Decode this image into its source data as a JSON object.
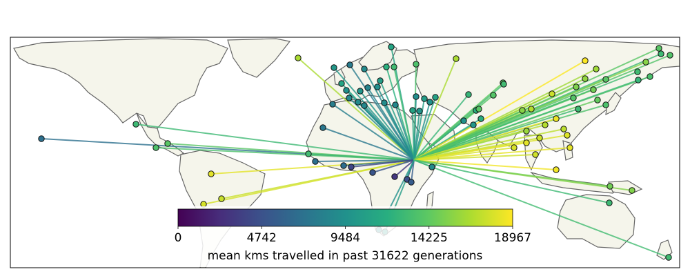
{
  "colorbar": {
    "ticks": [
      "0",
      "4742",
      "9484",
      "14225",
      "18967"
    ],
    "label": "mean kms travelled in past 31622 generations",
    "colormap": "viridis",
    "min": 0,
    "max": 18967
  },
  "map": {
    "land_color": "#f5f5eb",
    "coast_color": "#666666",
    "origin_description": "all migration lines converge on a point in East Africa (Lake Victoria region)"
  },
  "migration_points": [
    {
      "pos": [
        60,
        201
      ],
      "km": 7000
    },
    {
      "pos": [
        197,
        180
      ],
      "km": 12800
    },
    {
      "pos": [
        226,
        214
      ],
      "km": 13500
    },
    {
      "pos": [
        243,
        208
      ],
      "km": 14000
    },
    {
      "pos": [
        306,
        252
      ],
      "km": 18200
    },
    {
      "pos": [
        321,
        288
      ],
      "km": 17400
    },
    {
      "pos": [
        295,
        296
      ],
      "km": 17800
    },
    {
      "pos": [
        432,
        84
      ],
      "km": 16500
    },
    {
      "pos": [
        484,
        98
      ],
      "km": 10000
    },
    {
      "pos": [
        507,
        94
      ],
      "km": 7800
    },
    {
      "pos": [
        528,
        100
      ],
      "km": 9000
    },
    {
      "pos": [
        567,
        68
      ],
      "km": 11000
    },
    {
      "pos": [
        560,
        97
      ],
      "km": 12000
    },
    {
      "pos": [
        571,
        97
      ],
      "km": 13000
    },
    {
      "pos": [
        603,
        93
      ],
      "km": 13500
    },
    {
      "pos": [
        661,
        85
      ],
      "km": 16500
    },
    {
      "pos": [
        495,
        121
      ],
      "km": 11000
    },
    {
      "pos": [
        502,
        131
      ],
      "km": 9500
    },
    {
      "pos": [
        522,
        132
      ],
      "km": 9800
    },
    {
      "pos": [
        533,
        127
      ],
      "km": 8500
    },
    {
      "pos": [
        547,
        126
      ],
      "km": 9300
    },
    {
      "pos": [
        551,
        117
      ],
      "km": 10500
    },
    {
      "pos": [
        482,
        151
      ],
      "km": 8000
    },
    {
      "pos": [
        519,
        148
      ],
      "km": 9000
    },
    {
      "pos": [
        528,
        153
      ],
      "km": 8700
    },
    {
      "pos": [
        506,
        142
      ],
      "km": 8900
    },
    {
      "pos": [
        557,
        149
      ],
      "km": 9100
    },
    {
      "pos": [
        573,
        152
      ],
      "km": 8800
    },
    {
      "pos": [
        603,
        140
      ],
      "km": 9200
    },
    {
      "pos": [
        615,
        143
      ],
      "km": 10500
    },
    {
      "pos": [
        623,
        148
      ],
      "km": 9400
    },
    {
      "pos": [
        631,
        141
      ],
      "km": 10800
    },
    {
      "pos": [
        608,
        161
      ],
      "km": 9800
    },
    {
      "pos": [
        598,
        160
      ],
      "km": 11000
    },
    {
      "pos": [
        468,
        185
      ],
      "km": 7600
    },
    {
      "pos": [
        447,
        223
      ],
      "km": 13000
    },
    {
      "pos": [
        457,
        234
      ],
      "km": 7000
    },
    {
      "pos": [
        498,
        240
      ],
      "km": 6800
    },
    {
      "pos": [
        509,
        242
      ],
      "km": 4000
    },
    {
      "pos": [
        540,
        250
      ],
      "km": 5000
    },
    {
      "pos": [
        572,
        256
      ],
      "km": 3000
    },
    {
      "pos": [
        590,
        260
      ],
      "km": 4500
    },
    {
      "pos": [
        596,
        264
      ],
      "km": 5500
    },
    {
      "pos": [
        626,
        242
      ],
      "km": 9000
    },
    {
      "pos": [
        549,
        333
      ],
      "km": 9400
    },
    {
      "pos": [
        558,
        336
      ],
      "km": 10400
    },
    {
      "pos": [
        679,
        137
      ],
      "km": 12500
    },
    {
      "pos": [
        690,
        160
      ],
      "km": 12000
    },
    {
      "pos": [
        694,
        158
      ],
      "km": 14000
    },
    {
      "pos": [
        672,
        175
      ],
      "km": 9500
    },
    {
      "pos": [
        686,
        181
      ],
      "km": 10000
    },
    {
      "pos": [
        697,
        172
      ],
      "km": 11800
    },
    {
      "pos": [
        715,
        138
      ],
      "km": 13800
    },
    {
      "pos": [
        729,
        120
      ],
      "km": 14200
    },
    {
      "pos": [
        730,
        122
      ],
      "km": 13000
    },
    {
      "pos": [
        757,
        160
      ],
      "km": 15500
    },
    {
      "pos": [
        770,
        158
      ],
      "km": 16800
    },
    {
      "pos": [
        800,
        136
      ],
      "km": 17500
    },
    {
      "pos": [
        848,
        88
      ],
      "km": 18900
    },
    {
      "pos": [
        864,
        100
      ],
      "km": 16200
    },
    {
      "pos": [
        835,
        126
      ],
      "km": 15200
    },
    {
      "pos": [
        848,
        114
      ],
      "km": 15800
    },
    {
      "pos": [
        860,
        130
      ],
      "km": 14800
    },
    {
      "pos": [
        878,
        115
      ],
      "km": 14000
    },
    {
      "pos": [
        878,
        152
      ],
      "km": 13500
    },
    {
      "pos": [
        866,
        145
      ],
      "km": 14400
    },
    {
      "pos": [
        831,
        142
      ],
      "km": 13800
    },
    {
      "pos": [
        838,
        158
      ],
      "km": 12800
    },
    {
      "pos": [
        924,
        104
      ],
      "km": 13000
    },
    {
      "pos": [
        936,
        90
      ],
      "km": 15500
    },
    {
      "pos": [
        925,
        116
      ],
      "km": 12500
    },
    {
      "pos": [
        942,
        111
      ],
      "km": 13400
    },
    {
      "pos": [
        955,
        70
      ],
      "km": 14000
    },
    {
      "pos": [
        958,
        78
      ],
      "km": 12800
    },
    {
      "pos": [
        971,
        80
      ],
      "km": 13700
    },
    {
      "pos": [
        806,
        172
      ],
      "km": 18500
    },
    {
      "pos": [
        790,
        181
      ],
      "km": 16800
    },
    {
      "pos": [
        763,
        190
      ],
      "km": 16000
    },
    {
      "pos": [
        817,
        187
      ],
      "km": 17000
    },
    {
      "pos": [
        822,
        196
      ],
      "km": 18000
    },
    {
      "pos": [
        782,
        200
      ],
      "km": 17500
    },
    {
      "pos": [
        763,
        207
      ],
      "km": 18200
    },
    {
      "pos": [
        745,
        214
      ],
      "km": 17800
    },
    {
      "pos": [
        826,
        214
      ],
      "km": 18300
    },
    {
      "pos": [
        776,
        224
      ],
      "km": 17600
    },
    {
      "pos": [
        806,
        246
      ],
      "km": 18600
    },
    {
      "pos": [
        884,
        270
      ],
      "km": 14800
    },
    {
      "pos": [
        916,
        276
      ],
      "km": 15300
    },
    {
      "pos": [
        883,
        294
      ],
      "km": 12800
    },
    {
      "pos": [
        969,
        373
      ],
      "km": 13000
    }
  ]
}
